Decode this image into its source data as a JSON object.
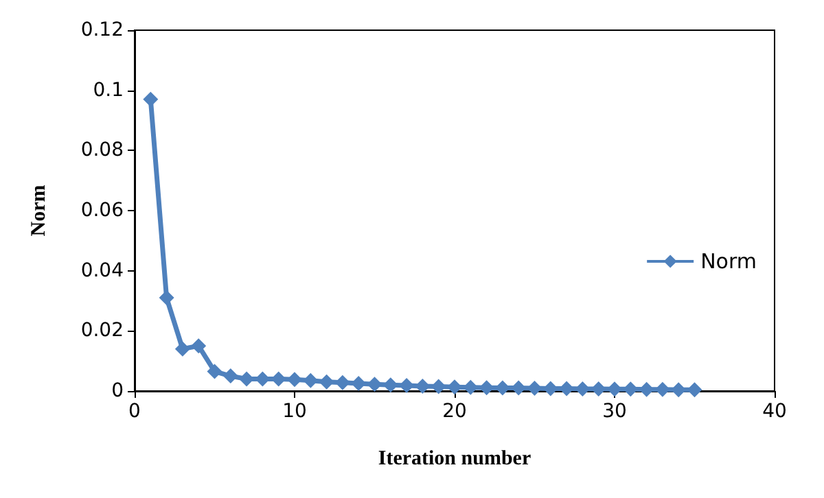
{
  "chart_data": {
    "type": "line",
    "xlabel": "Iteration number",
    "ylabel": "Norm",
    "x": [
      1,
      2,
      3,
      4,
      5,
      6,
      7,
      8,
      9,
      10,
      11,
      12,
      13,
      14,
      15,
      16,
      17,
      18,
      19,
      20,
      21,
      22,
      23,
      24,
      25,
      26,
      27,
      28,
      29,
      30,
      31,
      32,
      33,
      34,
      35
    ],
    "series": [
      {
        "name": "Norm",
        "color": "#4f81bd",
        "values": [
          0.097,
          0.031,
          0.014,
          0.015,
          0.0065,
          0.005,
          0.004,
          0.004,
          0.004,
          0.0038,
          0.0035,
          0.003,
          0.0028,
          0.0025,
          0.0022,
          0.002,
          0.0018,
          0.0016,
          0.0015,
          0.0013,
          0.0012,
          0.0011,
          0.001,
          0.001,
          0.0009,
          0.0008,
          0.0008,
          0.0007,
          0.0007,
          0.0006,
          0.0006,
          0.0005,
          0.0005,
          0.0004,
          0.0004
        ]
      }
    ],
    "xlim": [
      0,
      40
    ],
    "xticks": [
      0,
      10,
      20,
      30,
      40
    ],
    "ylim": [
      0,
      0.12
    ],
    "yticks": [
      0,
      0.02,
      0.04,
      0.06,
      0.08,
      0.1,
      0.12
    ],
    "grid": false,
    "legend": "right",
    "marker": "diamond",
    "line_style": "solid"
  }
}
